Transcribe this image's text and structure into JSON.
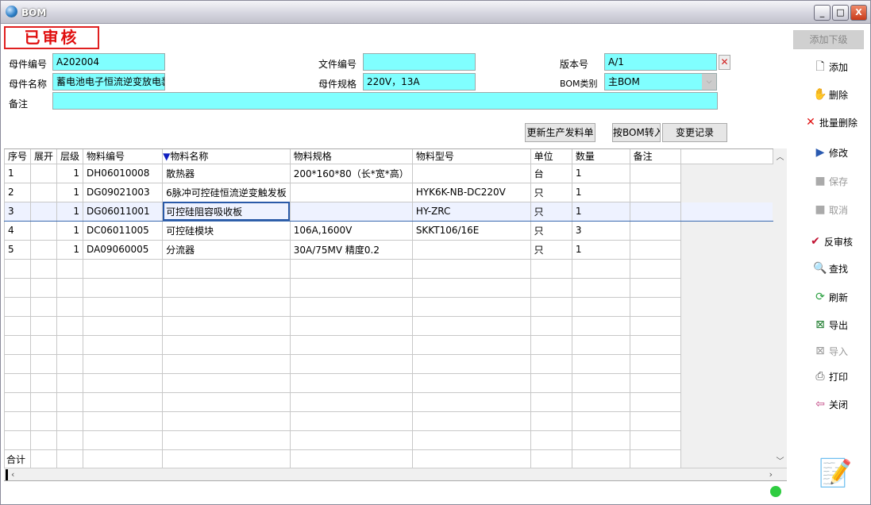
{
  "window": {
    "title": "BOM",
    "minimize": "_",
    "maximize": "□",
    "close": "X"
  },
  "status_stamp": "已审核",
  "form": {
    "parent_code_label": "母件编号",
    "parent_code": "A202004",
    "doc_no_label": "文件编号",
    "doc_no": "",
    "version_label": "版本号",
    "version": "A/1",
    "parent_name_label": "母件名称",
    "parent_name": "蓄电池电子恒流逆变放电装置",
    "parent_spec_label": "母件规格",
    "parent_spec": "220V，13A",
    "bom_type_label": "BOM类别",
    "bom_type": "主BOM",
    "remark_label": "备注",
    "remark": ""
  },
  "actions": {
    "update_issue": "更新生产发料单",
    "bom_import": "按BOM转入",
    "change_log": "变更记录"
  },
  "table": {
    "columns": [
      "序号",
      "展开",
      "层级",
      "物料编号",
      "物料名称",
      "物料规格",
      "物料型号",
      "单位",
      "数量",
      "备注"
    ],
    "sort_indicator": "▼",
    "rows": [
      [
        "1",
        "",
        "1",
        "DH06010008",
        "散热器",
        "200*160*80（长*宽*高）",
        "",
        "台",
        "1",
        ""
      ],
      [
        "2",
        "",
        "1",
        "DG09021003",
        "6脉冲可控硅恒流逆变触发板",
        "",
        "HYK6K-NB-DC220V",
        "只",
        "1",
        ""
      ],
      [
        "3",
        "",
        "1",
        "DG06011001",
        "可控硅阻容吸收板",
        "",
        "HY-ZRC",
        "只",
        "1",
        ""
      ],
      [
        "4",
        "",
        "1",
        "DC06011005",
        "可控硅模块",
        "106A,1600V",
        "SKKT106/16E",
        "只",
        "3",
        ""
      ],
      [
        "5",
        "",
        "1",
        "DA09060005",
        "分流器",
        "30A/75MV 精度0.2",
        "",
        "只",
        "1",
        ""
      ]
    ],
    "selected_row": 3,
    "total_label": "合计"
  },
  "sidebar": {
    "add_child": "添加下级",
    "items": [
      {
        "label": "添加",
        "icon": "document-icon",
        "enabled": true
      },
      {
        "label": "删除",
        "icon": "delete-hand-icon",
        "enabled": true
      },
      {
        "label": "批量删除",
        "icon": "red-x-icon",
        "enabled": true
      },
      {
        "label": "修改",
        "icon": "edit-icon",
        "enabled": true
      },
      {
        "label": "保存",
        "icon": "save-icon",
        "enabled": false
      },
      {
        "label": "取消",
        "icon": "cancel-icon",
        "enabled": false
      },
      {
        "label": "反审核",
        "icon": "spellcheck-icon",
        "enabled": true
      },
      {
        "label": "查找",
        "icon": "magnifier-icon",
        "enabled": true
      },
      {
        "label": "刷新",
        "icon": "refresh-icon",
        "enabled": true
      },
      {
        "label": "导出",
        "icon": "excel-export-icon",
        "enabled": true
      },
      {
        "label": "导入",
        "icon": "excel-import-icon",
        "enabled": false
      },
      {
        "label": "打印",
        "icon": "printer-icon",
        "enabled": true
      },
      {
        "label": "关闭",
        "icon": "exit-door-icon",
        "enabled": true
      }
    ]
  },
  "colors": {
    "field_bg": "#80ffff",
    "stamp": "#e01010"
  }
}
